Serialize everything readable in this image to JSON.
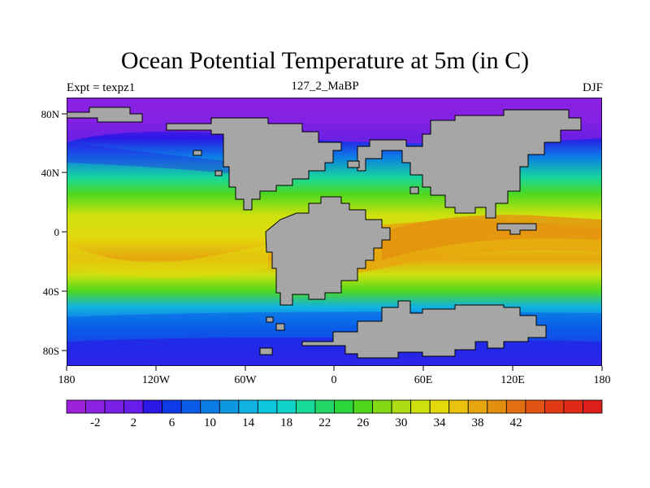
{
  "title": "Ocean Potential Temperature at 5m (in C)",
  "subtitle_left": "Expt = texpz1",
  "subtitle_center": "127_2_MaBP",
  "subtitle_right": "DJF",
  "x_ticks": [
    "180",
    "120W",
    "60W",
    "0",
    "60E",
    "120E",
    "180"
  ],
  "y_ticks": [
    "80N",
    "40N",
    "0",
    "40S",
    "80S"
  ],
  "colorbar": {
    "labels": [
      "-2",
      "2",
      "6",
      "10",
      "14",
      "18",
      "22",
      "26",
      "30",
      "34",
      "38",
      "42"
    ],
    "colors": [
      "#9b22d8",
      "#8a22e2",
      "#7a1fe6",
      "#6a1ceb",
      "#2a18e6",
      "#0f3ae8",
      "#0b5de9",
      "#0c7ce6",
      "#0e98e4",
      "#10b3e2",
      "#0cc6dd",
      "#10d2c8",
      "#18d89a",
      "#23d766",
      "#2ad63a",
      "#4fd81e",
      "#84d915",
      "#aedd13",
      "#cfe10e",
      "#e3d90d",
      "#e8c20c",
      "#e6a70e",
      "#e38f10",
      "#e27012",
      "#e25414",
      "#e23916",
      "#e02a18",
      "#dd1f1a"
    ]
  },
  "colors": {
    "land": "#a6a6a6",
    "ice_band": "#8a22e2"
  }
}
